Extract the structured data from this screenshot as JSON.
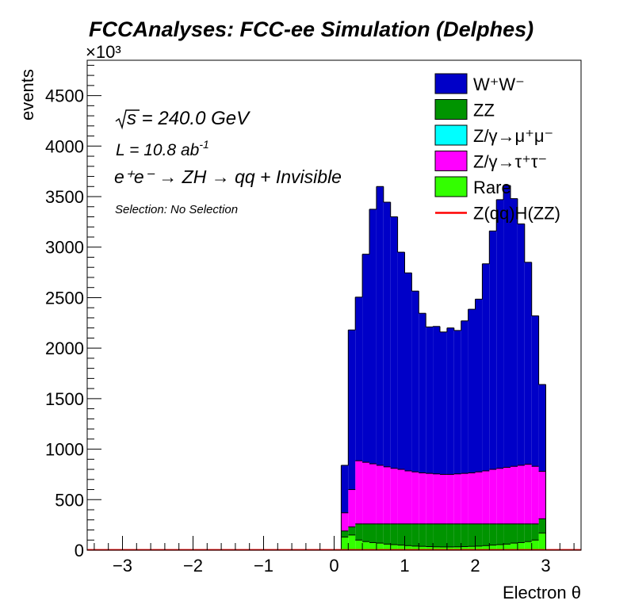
{
  "chart_data": {
    "type": "bar",
    "title": "FCCAnalyses: FCC-ee Simulation (Delphes)",
    "xlabel": "Electron θ",
    "ylabel": "events",
    "y_multiplier": "×10³",
    "xlim": [
      -3.5,
      3.5
    ],
    "ylim": [
      0,
      4850
    ],
    "x_ticks": [
      -3,
      -2,
      -1,
      0,
      1,
      2,
      3
    ],
    "x_tick_labels": [
      "−3",
      "−2",
      "−1",
      "0",
      "1",
      "2",
      "3"
    ],
    "y_ticks": [
      0,
      500,
      1000,
      1500,
      2000,
      2500,
      3000,
      3500,
      4000,
      4500
    ],
    "annotations": {
      "energy": "s = 240.0 GeV",
      "lumi": "L = 10.8 ab",
      "lumi_exp": "-1",
      "process": "e⁺e⁻ → ZH → qq + Invisible",
      "selection": "Selection: No Selection"
    },
    "legend": [
      {
        "label": "W⁺W⁻",
        "color": "#0000c8",
        "kind": "box"
      },
      {
        "label": "ZZ",
        "color": "#009400",
        "kind": "box"
      },
      {
        "label": "Z/γ→μ⁺μ⁻",
        "color": "#00ffff",
        "kind": "box"
      },
      {
        "label": "Z/γ→τ⁺τ⁻",
        "color": "#ff00ff",
        "kind": "box"
      },
      {
        "label": "Rare",
        "color": "#33ff00",
        "kind": "box"
      },
      {
        "label": "Z(qq)H(ZZ)",
        "color": "#ff0000",
        "kind": "line"
      }
    ],
    "bins": {
      "x_low": [
        0.1,
        0.2,
        0.3,
        0.4,
        0.5,
        0.6,
        0.7,
        0.8,
        0.9,
        1.0,
        1.1,
        1.2,
        1.3,
        1.4,
        1.5,
        1.6,
        1.7,
        1.8,
        1.9,
        2.0,
        2.1,
        2.2,
        2.3,
        2.4,
        2.5,
        2.6,
        2.7,
        2.8,
        2.9
      ],
      "width": 0.1
    },
    "series": [
      {
        "name": "Rare",
        "color": "#33ff00",
        "values": [
          130,
          150,
          100,
          85,
          75,
          70,
          60,
          55,
          50,
          45,
          40,
          38,
          35,
          33,
          32,
          32,
          33,
          35,
          38,
          40,
          45,
          50,
          55,
          60,
          70,
          75,
          85,
          100,
          170
        ]
      },
      {
        "name": "ZZ",
        "color": "#009400",
        "values": [
          60,
          80,
          160,
          175,
          185,
          190,
          200,
          205,
          210,
          215,
          220,
          222,
          225,
          227,
          228,
          228,
          227,
          225,
          222,
          220,
          215,
          210,
          205,
          200,
          190,
          185,
          175,
          160,
          140
        ]
      },
      {
        "name": "Z/γ→μ⁺μ⁻",
        "color": "#00ffff",
        "values": [
          0,
          0,
          0,
          0,
          0,
          0,
          0,
          0,
          0,
          0,
          0,
          0,
          0,
          0,
          0,
          0,
          0,
          0,
          0,
          0,
          0,
          0,
          0,
          0,
          0,
          0,
          0,
          0,
          0
        ]
      },
      {
        "name": "Z/γ→τ⁺τ⁻",
        "color": "#ff00ff",
        "values": [
          180,
          370,
          625,
          610,
          595,
          580,
          565,
          550,
          540,
          525,
          515,
          505,
          500,
          495,
          490,
          490,
          495,
          500,
          505,
          515,
          525,
          540,
          550,
          560,
          570,
          580,
          590,
          570,
          470
        ]
      },
      {
        "name": "W⁺W⁻",
        "color": "#0000c8",
        "values": [
          470,
          1580,
          1620,
          2060,
          2520,
          2760,
          2620,
          2490,
          2150,
          1960,
          1790,
          1580,
          1450,
          1460,
          1410,
          1450,
          1420,
          1510,
          1620,
          1710,
          2050,
          2360,
          2660,
          2790,
          2650,
          2390,
          2000,
          1490,
          860
        ]
      }
    ],
    "signal": {
      "name": "Z(qq)H(ZZ)",
      "color": "#ff0000",
      "value": 3
    }
  }
}
